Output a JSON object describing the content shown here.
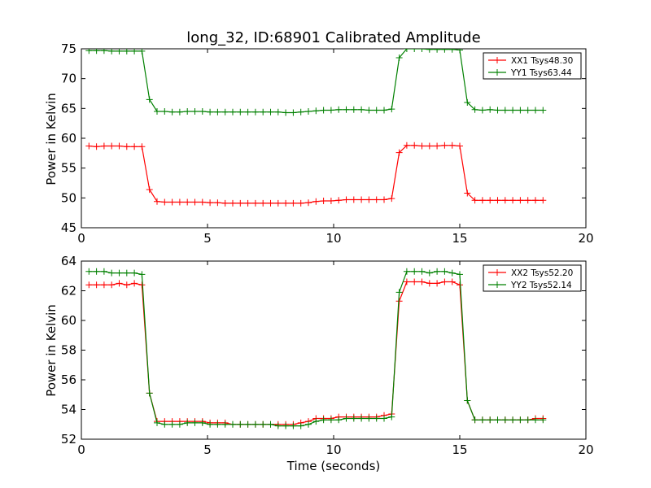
{
  "figure": {
    "title": "long_32, ID:68901 Calibrated Amplitude",
    "xlabel": "Time (seconds)"
  },
  "chart_data": [
    {
      "type": "line",
      "ylabel": "Power in Kelvin",
      "xlim": [
        0,
        20
      ],
      "ylim": [
        45,
        75
      ],
      "xticks": [
        0,
        5,
        10,
        15,
        20
      ],
      "yticks": [
        45,
        50,
        55,
        60,
        65,
        70,
        75
      ],
      "legend_position": "top-right",
      "x": [
        0.3,
        0.6,
        0.9,
        1.2,
        1.5,
        1.8,
        2.1,
        2.4,
        2.7,
        3.0,
        3.3,
        3.6,
        3.9,
        4.2,
        4.5,
        4.8,
        5.1,
        5.4,
        5.7,
        6.0,
        6.3,
        6.6,
        6.9,
        7.2,
        7.5,
        7.8,
        8.1,
        8.4,
        8.7,
        9.0,
        9.3,
        9.6,
        9.9,
        10.2,
        10.5,
        10.8,
        11.1,
        11.4,
        11.7,
        12.0,
        12.3,
        12.6,
        12.9,
        13.2,
        13.5,
        13.8,
        14.1,
        14.4,
        14.7,
        15.0,
        15.3,
        15.6,
        15.9,
        16.2,
        16.5,
        16.8,
        17.1,
        17.4,
        17.7,
        18.0,
        18.3
      ],
      "series": [
        {
          "name": "XX1 Tsys48.30",
          "color": "#ff0000",
          "values": [
            58.7,
            58.6,
            58.7,
            58.7,
            58.7,
            58.6,
            58.6,
            58.6,
            51.4,
            49.4,
            49.3,
            49.3,
            49.3,
            49.3,
            49.3,
            49.3,
            49.2,
            49.2,
            49.1,
            49.1,
            49.1,
            49.1,
            49.1,
            49.1,
            49.1,
            49.1,
            49.1,
            49.1,
            49.1,
            49.2,
            49.4,
            49.5,
            49.5,
            49.6,
            49.7,
            49.7,
            49.7,
            49.7,
            49.7,
            49.7,
            49.9,
            57.6,
            58.8,
            58.8,
            58.7,
            58.7,
            58.7,
            58.8,
            58.8,
            58.7,
            50.8,
            49.6,
            49.6,
            49.6,
            49.6,
            49.6,
            49.6,
            49.6,
            49.6,
            49.6,
            49.6
          ]
        },
        {
          "name": "YY1 Tsys63.44",
          "color": "#008000",
          "values": [
            74.7,
            74.7,
            74.7,
            74.6,
            74.6,
            74.6,
            74.6,
            74.6,
            66.5,
            64.5,
            64.5,
            64.4,
            64.4,
            64.5,
            64.5,
            64.5,
            64.4,
            64.4,
            64.4,
            64.4,
            64.4,
            64.4,
            64.4,
            64.4,
            64.4,
            64.4,
            64.3,
            64.3,
            64.4,
            64.5,
            64.6,
            64.7,
            64.7,
            64.8,
            64.8,
            64.8,
            64.8,
            64.7,
            64.7,
            64.7,
            64.9,
            73.5,
            75.0,
            75.0,
            75.0,
            74.9,
            74.9,
            74.9,
            74.9,
            74.8,
            66.0,
            64.8,
            64.7,
            64.8,
            64.7,
            64.7,
            64.7,
            64.7,
            64.7,
            64.7,
            64.7
          ]
        }
      ]
    },
    {
      "type": "line",
      "ylabel": "Power in Kelvin",
      "xlabel": "Time (seconds)",
      "xlim": [
        0,
        20
      ],
      "ylim": [
        52,
        64
      ],
      "xticks": [
        0,
        5,
        10,
        15,
        20
      ],
      "yticks": [
        52,
        54,
        56,
        58,
        60,
        62,
        64
      ],
      "legend_position": "top-right",
      "x": [
        0.3,
        0.6,
        0.9,
        1.2,
        1.5,
        1.8,
        2.1,
        2.4,
        2.7,
        3.0,
        3.3,
        3.6,
        3.9,
        4.2,
        4.5,
        4.8,
        5.1,
        5.4,
        5.7,
        6.0,
        6.3,
        6.6,
        6.9,
        7.2,
        7.5,
        7.8,
        8.1,
        8.4,
        8.7,
        9.0,
        9.3,
        9.6,
        9.9,
        10.2,
        10.5,
        10.8,
        11.1,
        11.4,
        11.7,
        12.0,
        12.3,
        12.6,
        12.9,
        13.2,
        13.5,
        13.8,
        14.1,
        14.4,
        14.7,
        15.0,
        15.3,
        15.6,
        15.9,
        16.2,
        16.5,
        16.8,
        17.1,
        17.4,
        17.7,
        18.0,
        18.3
      ],
      "series": [
        {
          "name": "XX2 Tsys52.20",
          "color": "#ff0000",
          "values": [
            62.4,
            62.4,
            62.4,
            62.4,
            62.5,
            62.4,
            62.5,
            62.4,
            55.1,
            53.2,
            53.2,
            53.2,
            53.2,
            53.2,
            53.2,
            53.2,
            53.1,
            53.1,
            53.1,
            53.0,
            53.0,
            53.0,
            53.0,
            53.0,
            53.0,
            53.0,
            53.0,
            53.0,
            53.1,
            53.2,
            53.4,
            53.4,
            53.4,
            53.5,
            53.5,
            53.5,
            53.5,
            53.5,
            53.5,
            53.6,
            53.7,
            61.3,
            62.6,
            62.6,
            62.6,
            62.5,
            62.5,
            62.6,
            62.6,
            62.4,
            54.6,
            53.3,
            53.3,
            53.3,
            53.3,
            53.3,
            53.3,
            53.3,
            53.3,
            53.4,
            53.4
          ]
        },
        {
          "name": "YY2 Tsys52.14",
          "color": "#008000",
          "values": [
            63.3,
            63.3,
            63.3,
            63.2,
            63.2,
            63.2,
            63.2,
            63.1,
            55.1,
            53.1,
            53.0,
            53.0,
            53.0,
            53.1,
            53.1,
            53.1,
            53.0,
            53.0,
            53.0,
            53.0,
            53.0,
            53.0,
            53.0,
            53.0,
            53.0,
            52.9,
            52.9,
            52.9,
            52.9,
            53.0,
            53.2,
            53.3,
            53.3,
            53.3,
            53.4,
            53.4,
            53.4,
            53.4,
            53.4,
            53.4,
            53.5,
            61.9,
            63.3,
            63.3,
            63.3,
            63.2,
            63.3,
            63.3,
            63.2,
            63.1,
            54.6,
            53.3,
            53.3,
            53.3,
            53.3,
            53.3,
            53.3,
            53.3,
            53.3,
            53.3,
            53.3
          ]
        }
      ]
    }
  ]
}
